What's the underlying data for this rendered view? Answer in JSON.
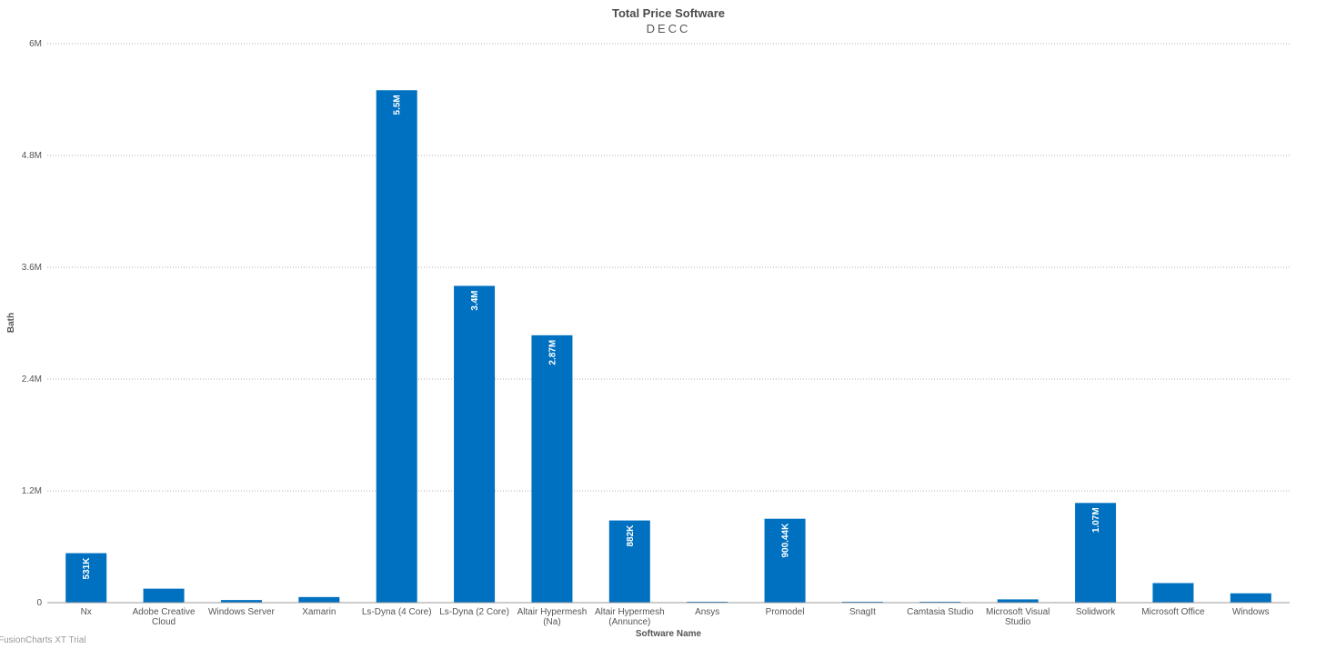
{
  "chart_data": {
    "type": "bar",
    "title": "Total Price Software",
    "subtitle": "DECC",
    "xlabel": "Software Name",
    "ylabel": "Bath",
    "ylim": [
      0,
      6000000
    ],
    "yticks": [
      0,
      1200000,
      2400000,
      3600000,
      4800000,
      6000000
    ],
    "ytick_labels": [
      "0",
      "1.2M",
      "2.4M",
      "3.6M",
      "4.8M",
      "6M"
    ],
    "grid": true,
    "categories": [
      [
        "Nx"
      ],
      [
        "Adobe Creative",
        "Cloud"
      ],
      [
        "Windows Server"
      ],
      [
        "Xamarin"
      ],
      [
        "Ls-Dyna (4 Core)"
      ],
      [
        "Ls-Dyna (2 Core)"
      ],
      [
        "Altair Hypermesh",
        "(Na)"
      ],
      [
        "Altair Hypermesh",
        "(Annunce)"
      ],
      [
        "Ansys"
      ],
      [
        "Promodel"
      ],
      [
        "SnagIt"
      ],
      [
        "Camtasia Studio"
      ],
      [
        "Microsoft Visual",
        "Studio"
      ],
      [
        "Solidwork"
      ],
      [
        "Microsoft Office"
      ],
      [
        "Windows"
      ]
    ],
    "values": [
      531000,
      150000,
      28000,
      60000,
      5500000,
      3400000,
      2870000,
      882000,
      5000,
      900440,
      8000,
      8000,
      35000,
      1070000,
      210000,
      100000
    ],
    "data_labels": [
      "531K",
      "",
      "",
      "",
      "5.5M",
      "3.4M",
      "2.87M",
      "882K",
      "",
      "900.44K",
      "",
      "",
      "",
      "1.07M",
      "",
      ""
    ],
    "bar_color": "#0070c0"
  },
  "watermark": "FusionCharts XT Trial"
}
